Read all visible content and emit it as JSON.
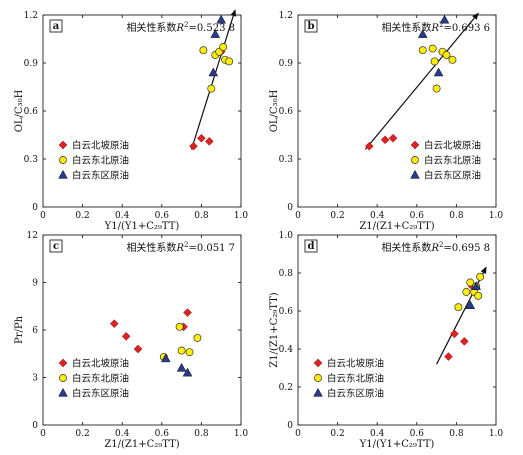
{
  "legend_labels": [
    "白云北坡原油",
    "白云东北原油",
    "白云东区原油"
  ],
  "colors": {
    "north_slope": "#dd2222",
    "northeast": "#ffee00",
    "east": "#283a8c"
  },
  "chart_data": [
    {
      "type": "scatter",
      "panel_label": "a",
      "annotation_prefix": "相关性系数",
      "annotation_value": "0.523 8",
      "xlabel": "Y1/(Y1+C₂₉TT)",
      "ylabel": "OL/C₃₀H",
      "xlim": [
        0,
        1
      ],
      "ylim": [
        0,
        1.2
      ],
      "xticks": [
        0,
        0.2,
        0.4,
        0.6,
        0.8,
        1.0
      ],
      "xtick_labels": [
        "0",
        "0.2",
        "0.4",
        "0.6",
        "0.8",
        "1.0"
      ],
      "yticks": [
        0,
        0.3,
        0.6,
        0.9,
        1.2
      ],
      "ytick_labels": [
        "0",
        "0.3",
        "0.6",
        "0.9",
        "1.2"
      ],
      "legend_position": "bottom-left",
      "trend_arrow": {
        "from": [
          0.75,
          0.36
        ],
        "to": [
          0.97,
          1.23
        ]
      },
      "series": [
        {
          "name": "白云北坡原油",
          "marker": "diamond",
          "points": [
            [
              0.76,
              0.38
            ],
            [
              0.8,
              0.43
            ],
            [
              0.84,
              0.41
            ],
            [
              0.9,
              0.97
            ]
          ]
        },
        {
          "name": "白云东北原油",
          "marker": "circle",
          "points": [
            [
              0.81,
              0.98
            ],
            [
              0.85,
              0.74
            ],
            [
              0.87,
              0.95
            ],
            [
              0.89,
              0.97
            ],
            [
              0.91,
              1.0
            ],
            [
              0.92,
              0.92
            ],
            [
              0.94,
              0.91
            ]
          ]
        },
        {
          "name": "白云东区原油",
          "marker": "triangle",
          "points": [
            [
              0.86,
              0.84
            ],
            [
              0.87,
              1.08
            ],
            [
              0.9,
              1.17
            ]
          ]
        }
      ]
    },
    {
      "type": "scatter",
      "panel_label": "b",
      "annotation_prefix": "相关性系数",
      "annotation_value": "0.693 6",
      "xlabel": "Z1/(Z1+C₂₉TT)",
      "ylabel": "OL/C₃₀H",
      "xlim": [
        0,
        1
      ],
      "ylim": [
        0,
        1.2
      ],
      "xticks": [
        0,
        0.2,
        0.4,
        0.6,
        0.8,
        1.0
      ],
      "xtick_labels": [
        "0",
        "0.2",
        "0.4",
        "0.6",
        "0.8",
        "1.0"
      ],
      "yticks": [
        0,
        0.3,
        0.6,
        0.9,
        1.2
      ],
      "ytick_labels": [
        "0",
        "0.3",
        "0.6",
        "0.9",
        "1.2"
      ],
      "legend_position": "bottom-right",
      "trend_arrow": {
        "from": [
          0.34,
          0.36
        ],
        "to": [
          0.91,
          1.21
        ]
      },
      "series": [
        {
          "name": "白云北坡原油",
          "marker": "diamond",
          "points": [
            [
              0.36,
              0.38
            ],
            [
              0.44,
              0.42
            ],
            [
              0.48,
              0.43
            ],
            [
              0.73,
              0.97
            ]
          ]
        },
        {
          "name": "白云东北原油",
          "marker": "circle",
          "points": [
            [
              0.63,
              0.98
            ],
            [
              0.68,
              0.99
            ],
            [
              0.69,
              0.91
            ],
            [
              0.7,
              0.74
            ],
            [
              0.73,
              0.97
            ],
            [
              0.75,
              0.95
            ],
            [
              0.78,
              0.92
            ]
          ]
        },
        {
          "name": "白云东区原油",
          "marker": "triangle",
          "points": [
            [
              0.63,
              1.08
            ],
            [
              0.71,
              0.84
            ],
            [
              0.74,
              1.17
            ]
          ]
        }
      ]
    },
    {
      "type": "scatter",
      "panel_label": "c",
      "annotation_prefix": "相关性系数",
      "annotation_value": "0.051 7",
      "xlabel": "Z1/(Z1+C₂₉TT)",
      "ylabel": "Pr/Ph",
      "xlim": [
        0,
        1
      ],
      "ylim": [
        0,
        12
      ],
      "xticks": [
        0,
        0.2,
        0.4,
        0.6,
        0.8,
        1.0
      ],
      "xtick_labels": [
        "0",
        "0.2",
        "0.4",
        "0.6",
        "0.8",
        "1.0"
      ],
      "yticks": [
        0,
        3,
        6,
        9,
        12
      ],
      "ytick_labels": [
        "0",
        "3",
        "6",
        "9",
        "12"
      ],
      "legend_position": "bottom-left",
      "series": [
        {
          "name": "白云北坡原油",
          "marker": "diamond",
          "points": [
            [
              0.36,
              6.4
            ],
            [
              0.42,
              5.6
            ],
            [
              0.48,
              4.8
            ],
            [
              0.71,
              6.2
            ],
            [
              0.73,
              7.1
            ]
          ]
        },
        {
          "name": "白云东北原油",
          "marker": "circle",
          "points": [
            [
              0.61,
              4.3
            ],
            [
              0.69,
              6.2
            ],
            [
              0.7,
              4.7
            ],
            [
              0.74,
              4.6
            ],
            [
              0.78,
              5.5
            ]
          ]
        },
        {
          "name": "白云东区原油",
          "marker": "triangle",
          "points": [
            [
              0.62,
              4.2
            ],
            [
              0.7,
              3.6
            ],
            [
              0.73,
              3.3
            ]
          ]
        }
      ]
    },
    {
      "type": "scatter",
      "panel_label": "d",
      "annotation_prefix": "相关性系数",
      "annotation_value": "0.695 8",
      "xlabel": "Y1/(Y1+C₂₉TT)",
      "ylabel": "Z1/(Z1+C₂₉TT)",
      "xlim": [
        0,
        1
      ],
      "ylim": [
        0,
        1.0
      ],
      "xticks": [
        0,
        0.2,
        0.4,
        0.6,
        0.8,
        1.0
      ],
      "xtick_labels": [
        "0",
        "0.2",
        "0.4",
        "0.6",
        "0.8",
        "1.0"
      ],
      "yticks": [
        0,
        0.2,
        0.4,
        0.6,
        0.8,
        1.0
      ],
      "ytick_labels": [
        "0",
        "0.2",
        "0.4",
        "0.6",
        "0.8",
        "1.0"
      ],
      "legend_position": "bottom-left",
      "trend_arrow": {
        "from": [
          0.7,
          0.32
        ],
        "to": [
          0.95,
          0.83
        ]
      },
      "series": [
        {
          "name": "白云北坡原油",
          "marker": "diamond",
          "points": [
            [
              0.76,
              0.36
            ],
            [
              0.79,
              0.48
            ],
            [
              0.84,
              0.44
            ],
            [
              0.88,
              0.73
            ]
          ]
        },
        {
          "name": "白云东北原油",
          "marker": "circle",
          "points": [
            [
              0.81,
              0.62
            ],
            [
              0.85,
              0.7
            ],
            [
              0.87,
              0.75
            ],
            [
              0.89,
              0.7
            ],
            [
              0.91,
              0.68
            ],
            [
              0.92,
              0.78
            ],
            [
              0.9,
              0.73
            ]
          ]
        },
        {
          "name": "白云东区原油",
          "marker": "triangle",
          "points": [
            [
              0.87,
              0.63
            ],
            [
              0.9,
              0.73
            ]
          ]
        }
      ]
    }
  ]
}
